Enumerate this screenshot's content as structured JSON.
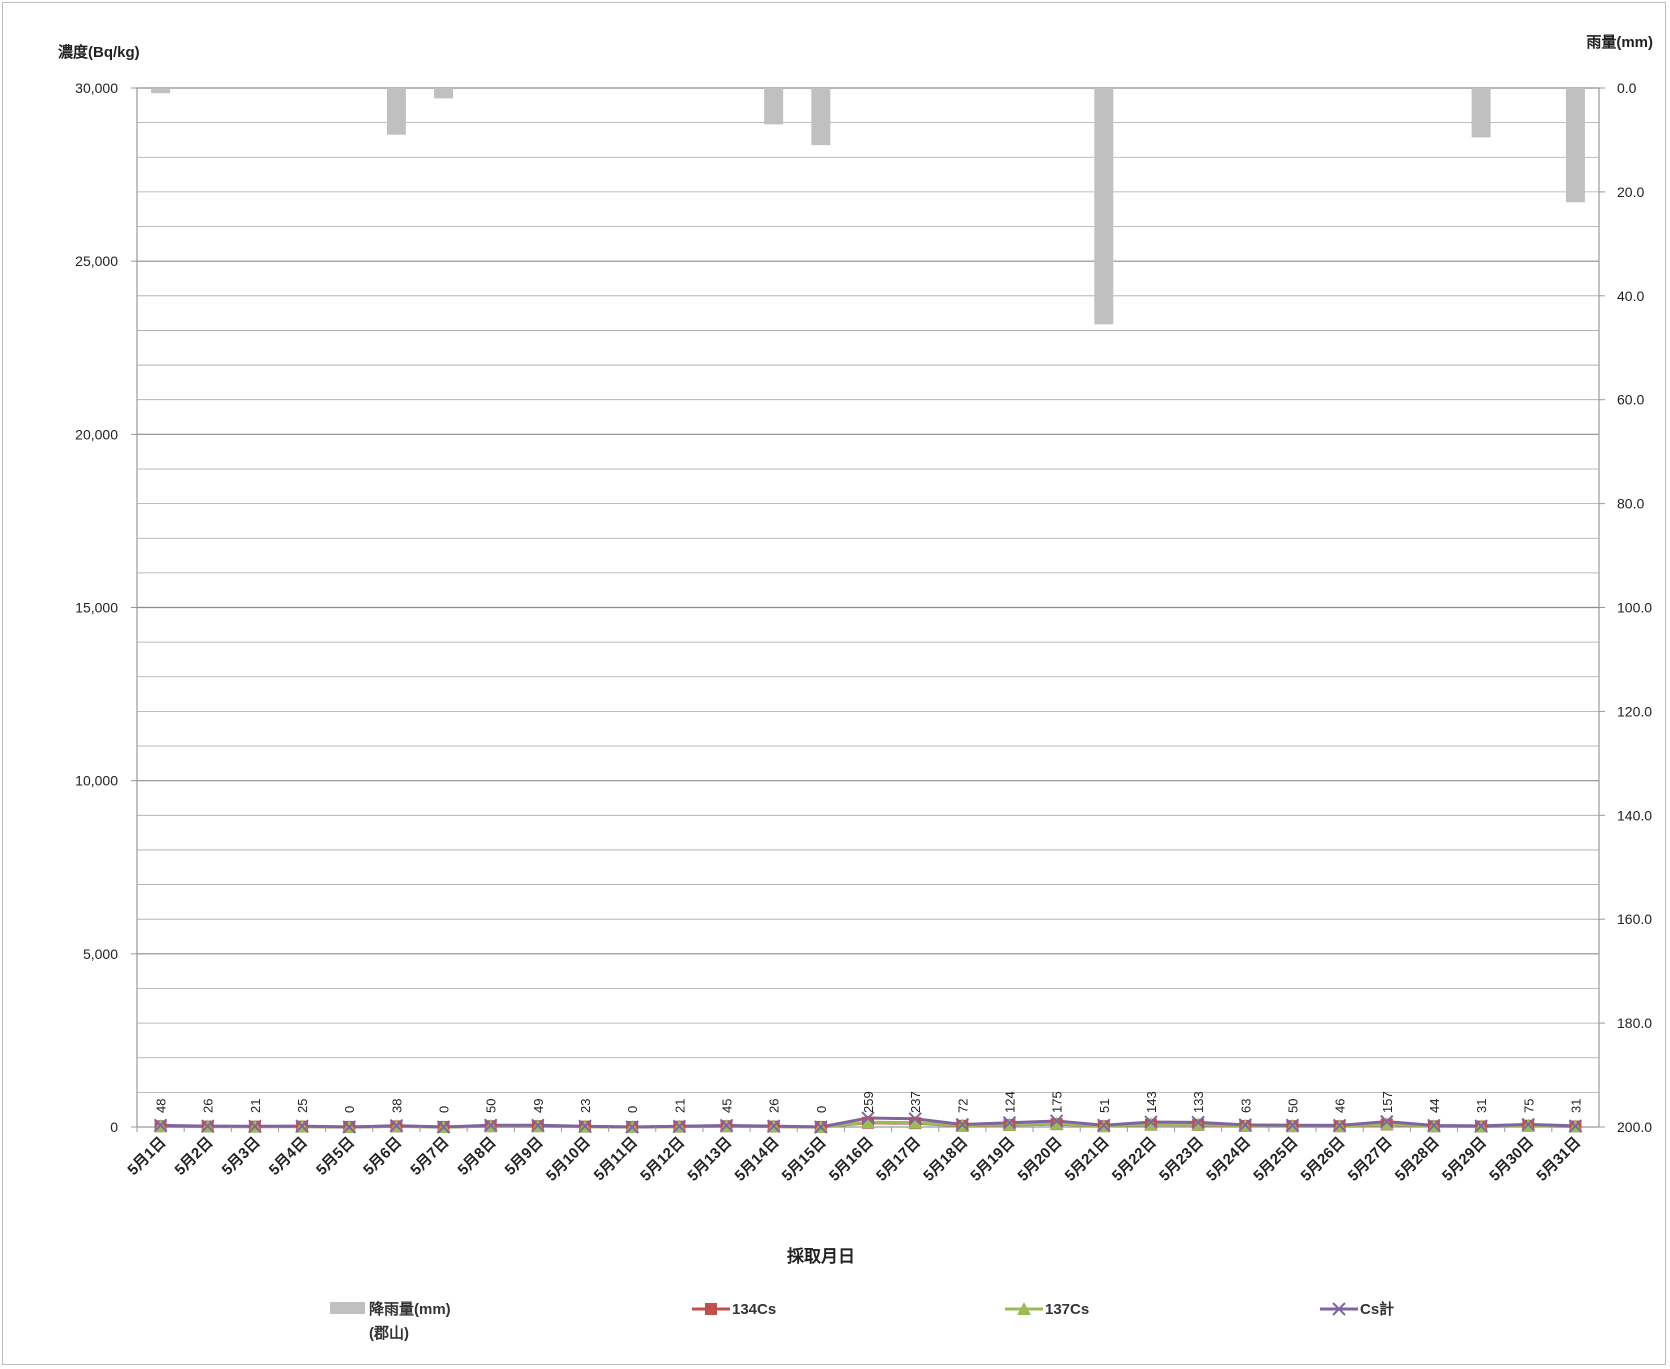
{
  "chart_data": {
    "type": "bar+line",
    "title": "",
    "xlabel": "採取月日",
    "ylabel_left": "濃度(Bq/kg)",
    "ylabel_right": "雨量(mm)",
    "ylim_left": [
      0,
      30000
    ],
    "ylim_right": [
      0,
      200
    ],
    "right_axis_inverted": true,
    "left_ticks": [
      "0",
      "5,000",
      "10,000",
      "15,000",
      "20,000",
      "25,000",
      "30,000"
    ],
    "left_tick_values": [
      0,
      5000,
      10000,
      15000,
      20000,
      25000,
      30000
    ],
    "right_ticks": [
      "0.0",
      "20.0",
      "40.0",
      "60.0",
      "80.0",
      "100.0",
      "120.0",
      "140.0",
      "160.0",
      "180.0",
      "200.0"
    ],
    "right_tick_values": [
      0,
      20,
      40,
      60,
      80,
      100,
      120,
      140,
      160,
      180,
      200
    ],
    "grid": true,
    "legend_position": "bottom",
    "categories": [
      "5月1日",
      "5月2日",
      "5月3日",
      "5月4日",
      "5月5日",
      "5月6日",
      "5月7日",
      "5月8日",
      "5月9日",
      "5月10日",
      "5月11日",
      "5月12日",
      "5月13日",
      "5月14日",
      "5月15日",
      "5月16日",
      "5月17日",
      "5月18日",
      "5月19日",
      "5月20日",
      "5月21日",
      "5月22日",
      "5月23日",
      "5月24日",
      "5月25日",
      "5月26日",
      "5月27日",
      "5月28日",
      "5月29日",
      "5月30日",
      "5月31日"
    ],
    "series": [
      {
        "name": "降雨量(mm)",
        "name_line2": "(郡山)",
        "type": "bar",
        "axis": "right",
        "color": "#c0c0c0",
        "values": [
          1,
          0,
          0,
          0,
          0,
          9,
          2,
          0,
          0,
          0,
          0,
          0,
          0,
          7,
          11,
          0,
          0,
          0,
          0,
          0,
          45.5,
          0,
          0,
          0,
          0,
          0,
          0,
          0,
          9.5,
          0,
          22
        ]
      },
      {
        "name": "134Cs",
        "type": "line",
        "axis": "left",
        "color": "#c0504d",
        "marker": "square",
        "values": [
          22,
          12,
          10,
          11,
          0,
          18,
          0,
          23,
          23,
          11,
          0,
          10,
          21,
          12,
          0,
          121,
          111,
          34,
          58,
          82,
          24,
          67,
          62,
          30,
          24,
          22,
          73,
          21,
          15,
          35,
          15
        ]
      },
      {
        "name": "137Cs",
        "type": "line",
        "axis": "left",
        "color": "#9bbb59",
        "marker": "triangle",
        "values": [
          26,
          14,
          11,
          14,
          0,
          20,
          0,
          27,
          26,
          12,
          0,
          11,
          24,
          14,
          0,
          138,
          126,
          38,
          66,
          93,
          27,
          76,
          71,
          33,
          26,
          24,
          84,
          23,
          16,
          40,
          16
        ]
      },
      {
        "name": "Cs計",
        "type": "line",
        "axis": "left",
        "color": "#8064a2",
        "marker": "x",
        "values": [
          48,
          26,
          21,
          25,
          0,
          38,
          0,
          50,
          49,
          23,
          0,
          21,
          45,
          26,
          0,
          259,
          237,
          72,
          124,
          175,
          51,
          143,
          133,
          63,
          50,
          46,
          157,
          44,
          31,
          75,
          31
        ]
      }
    ],
    "data_labels": [
      "48",
      "26",
      "21",
      "25",
      "0",
      "38",
      "0",
      "50",
      "49",
      "23",
      "0",
      "21",
      "45",
      "26",
      "0",
      "259",
      "237",
      "72",
      "124",
      "175",
      "51",
      "143",
      "133",
      "63",
      "50",
      "46",
      "157",
      "44",
      "31",
      "75",
      "31"
    ]
  }
}
